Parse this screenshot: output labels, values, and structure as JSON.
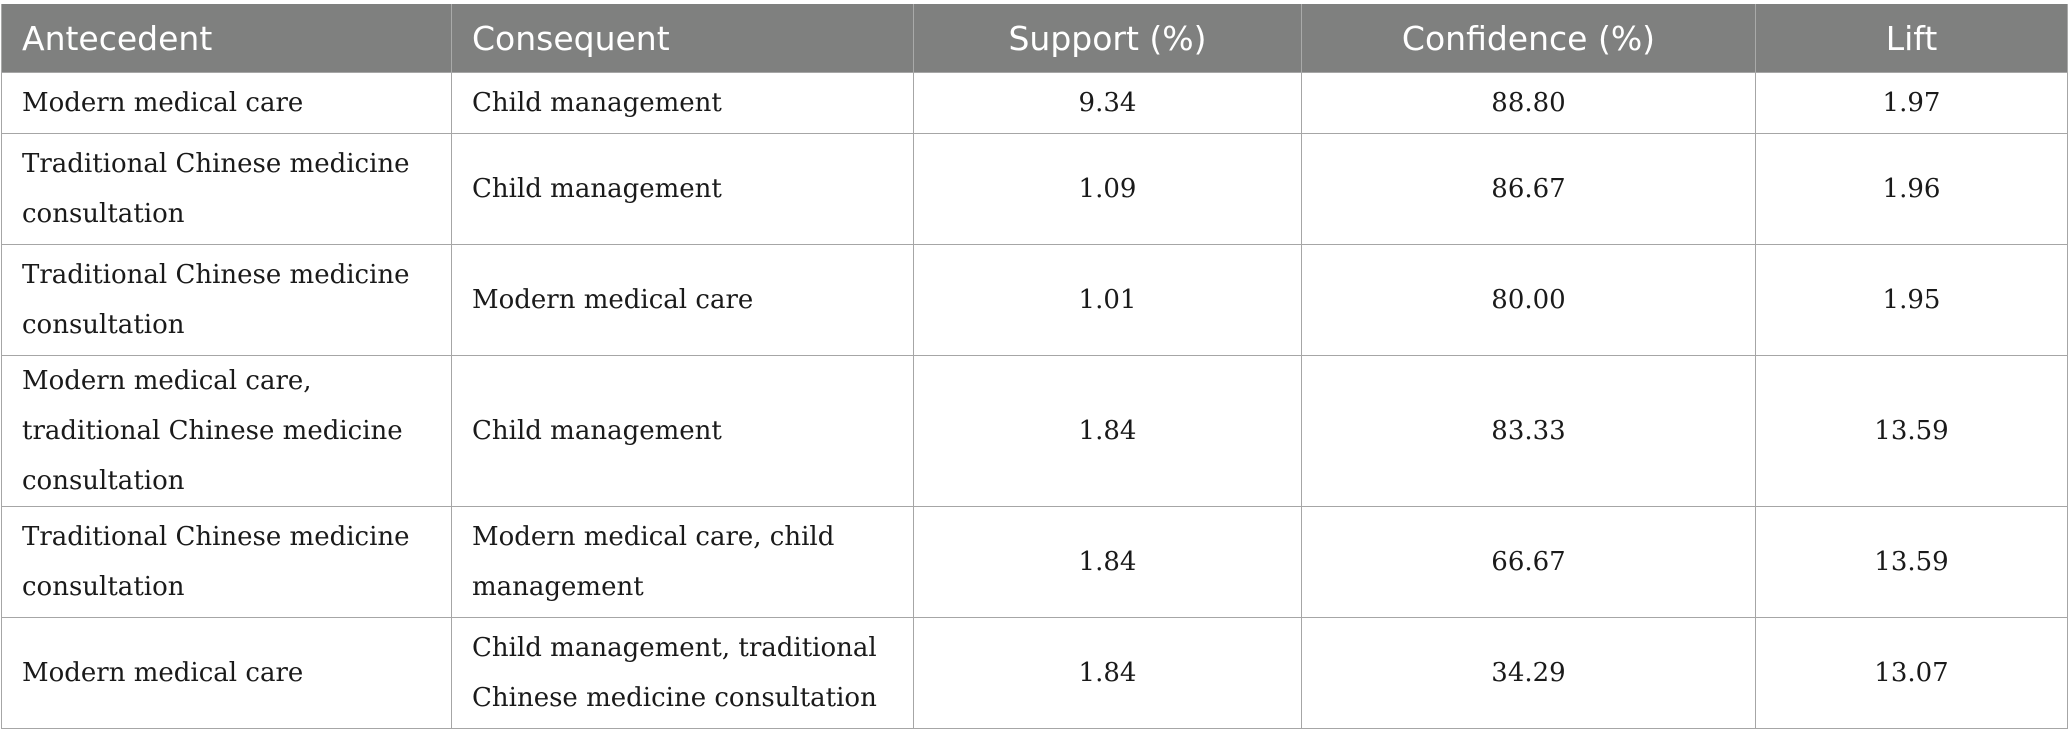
{
  "table": {
    "columns": [
      "Antecedent",
      "Consequent",
      "Support (%)",
      "Confidence (%)",
      "Lift"
    ],
    "rows": [
      {
        "antecedent": "Modern medical care",
        "consequent": "Child management",
        "support": "9.34",
        "confidence": "88.80",
        "lift": "1.97"
      },
      {
        "antecedent": "Traditional Chinese medicine consultation",
        "consequent": "Child management",
        "support": "1.09",
        "confidence": "86.67",
        "lift": "1.96"
      },
      {
        "antecedent": "Traditional Chinese medicine consultation",
        "consequent": "Modern medical care",
        "support": "1.01",
        "confidence": "80.00",
        "lift": "1.95"
      },
      {
        "antecedent": "Modern medical care, traditional Chinese medicine consultation",
        "consequent": "Child management",
        "support": "1.84",
        "confidence": "83.33",
        "lift": "13.59"
      },
      {
        "antecedent": "Traditional Chinese medicine consultation",
        "consequent": "Modern medical care, child management",
        "support": "1.84",
        "confidence": "66.67",
        "lift": "13.59"
      },
      {
        "antecedent": "Modern medical care",
        "consequent": "Child management, traditional Chinese medicine consultation",
        "support": "1.84",
        "confidence": "34.29",
        "lift": "13.07"
      }
    ]
  }
}
